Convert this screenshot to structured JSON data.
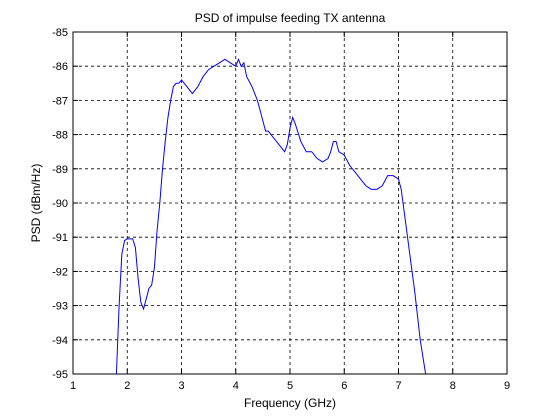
{
  "chart_data": {
    "type": "line",
    "title": "PSD of impulse feeding TX antenna",
    "xlabel": "Frequency (GHz)",
    "ylabel": "PSD (dBm/Hz)",
    "xlim": [
      1,
      9
    ],
    "ylim": [
      -95,
      -85
    ],
    "xticks": [
      1,
      2,
      3,
      4,
      5,
      6,
      7,
      8,
      9
    ],
    "yticks": [
      -85,
      -86,
      -87,
      -88,
      -89,
      -90,
      -91,
      -92,
      -93,
      -94,
      -95
    ],
    "grid": true,
    "line_color": "#0000ff",
    "series": [
      {
        "x": [
          1.8,
          1.85,
          1.9,
          1.95,
          2.0,
          2.1,
          2.15,
          2.2,
          2.25,
          2.3,
          2.35,
          2.4,
          2.45,
          2.5,
          2.55,
          2.6,
          2.65,
          2.7,
          2.75,
          2.8,
          2.85,
          2.9,
          2.95,
          3.0,
          3.1,
          3.2,
          3.3,
          3.4,
          3.5,
          3.6,
          3.7,
          3.8,
          3.9,
          4.0,
          4.05,
          4.1,
          4.15,
          4.2,
          4.3,
          4.4,
          4.5,
          4.55,
          4.6,
          4.7,
          4.8,
          4.9,
          4.95,
          5.0,
          5.05,
          5.1,
          5.2,
          5.3,
          5.4,
          5.5,
          5.6,
          5.7,
          5.75,
          5.8,
          5.85,
          5.9,
          6.0,
          6.1,
          6.2,
          6.3,
          6.4,
          6.5,
          6.6,
          6.7,
          6.8,
          6.9,
          7.0,
          7.05,
          7.1,
          7.15,
          7.2,
          7.3,
          7.4,
          7.5
        ],
        "y": [
          -95.0,
          -93.0,
          -91.5,
          -91.1,
          -91.05,
          -91.05,
          -91.3,
          -92.2,
          -92.9,
          -93.1,
          -92.8,
          -92.5,
          -92.4,
          -91.9,
          -90.8,
          -90.0,
          -89.0,
          -88.2,
          -87.5,
          -87.0,
          -86.6,
          -86.5,
          -86.5,
          -86.4,
          -86.6,
          -86.8,
          -86.6,
          -86.3,
          -86.1,
          -86.0,
          -85.9,
          -85.8,
          -85.9,
          -86.0,
          -85.8,
          -86.0,
          -85.9,
          -86.3,
          -86.6,
          -87.0,
          -87.6,
          -87.9,
          -87.9,
          -88.1,
          -88.3,
          -88.5,
          -88.3,
          -87.8,
          -87.5,
          -87.7,
          -88.2,
          -88.5,
          -88.5,
          -88.7,
          -88.8,
          -88.7,
          -88.5,
          -88.2,
          -88.2,
          -88.5,
          -88.6,
          -88.9,
          -89.1,
          -89.3,
          -89.5,
          -89.6,
          -89.6,
          -89.5,
          -89.2,
          -89.2,
          -89.3,
          -89.6,
          -90.2,
          -90.8,
          -91.4,
          -92.6,
          -94.0,
          -95.0
        ]
      }
    ]
  }
}
